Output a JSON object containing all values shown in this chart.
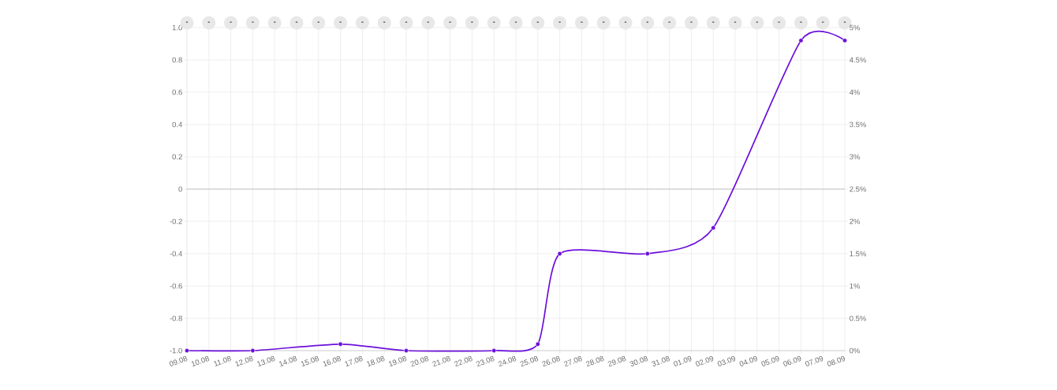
{
  "chart_data": {
    "type": "line",
    "categories": [
      "09.08",
      "10.08",
      "11.08",
      "12.08",
      "13.08",
      "14.08",
      "15.08",
      "16.08",
      "17.08",
      "18.08",
      "19.08",
      "20.08",
      "21.08",
      "22.08",
      "23.08",
      "24.08",
      "25.08",
      "26.08",
      "27.08",
      "28.08",
      "29.08",
      "30.08",
      "31.08",
      "01.09",
      "02.09",
      "03.09",
      "04.09",
      "05.09",
      "06.09",
      "07.09",
      "08.09"
    ],
    "series": [
      {
        "color": "#6c0fdb",
        "axis": "y2",
        "x": [
          "09.08",
          "12.08",
          "16.08",
          "19.08",
          "23.08",
          "25.08",
          "26.08",
          "30.08",
          "02.09",
          "06.09",
          "08.09"
        ],
        "values": [
          0,
          0,
          0.1,
          0,
          0,
          0.1,
          1.5,
          1.5,
          1.9,
          4.8,
          4.8
        ]
      }
    ],
    "ylim": [
      -1,
      1
    ],
    "yticks": [
      {
        "value": -1,
        "label": "-1.0"
      },
      -0.8,
      -0.6,
      -0.4,
      -0.2,
      0,
      0.2,
      0.4,
      0.6,
      0.8,
      {
        "value": 1,
        "label": "1.0"
      }
    ],
    "y2lim": [
      0,
      5
    ],
    "y2ticks": [
      {
        "value": 0,
        "label": "0%"
      },
      {
        "value": 0.5,
        "label": "0.5%"
      },
      {
        "value": 1,
        "label": "1%"
      },
      {
        "value": 1.5,
        "label": "1.5%"
      },
      {
        "value": 2,
        "label": "2%"
      },
      {
        "value": 2.5,
        "label": "2.5%"
      },
      {
        "value": 3,
        "label": "3%"
      },
      {
        "value": 3.5,
        "label": "3.5%"
      },
      {
        "value": 4,
        "label": "4%"
      },
      {
        "value": 4.5,
        "label": "4.5%"
      },
      {
        "value": 5,
        "label": "5%"
      }
    ],
    "ref_lines": [
      {
        "axis": "y",
        "value": 0,
        "color": "#c4c4c4"
      }
    ],
    "annotations": [
      {
        "text": "-",
        "x": "09.08"
      },
      {
        "text": "-",
        "x": "10.08"
      },
      {
        "text": "-",
        "x": "11.08"
      },
      {
        "text": "-",
        "x": "12.08"
      },
      {
        "text": "-",
        "x": "13.08"
      },
      {
        "text": "-",
        "x": "14.08"
      },
      {
        "text": "-",
        "x": "15.08"
      },
      {
        "text": "-",
        "x": "16.08"
      },
      {
        "text": "-",
        "x": "17.08"
      },
      {
        "text": "-",
        "x": "18.08"
      },
      {
        "text": "-",
        "x": "19.08"
      },
      {
        "text": "-",
        "x": "20.08"
      },
      {
        "text": "-",
        "x": "21.08"
      },
      {
        "text": "-",
        "x": "22.08"
      },
      {
        "text": "-",
        "x": "23.08"
      },
      {
        "text": "-",
        "x": "24.08"
      },
      {
        "text": "-",
        "x": "25.08"
      },
      {
        "text": "-",
        "x": "26.08"
      },
      {
        "text": "-",
        "x": "27.08"
      },
      {
        "text": "-",
        "x": "28.08"
      },
      {
        "text": "-",
        "x": "29.08"
      },
      {
        "text": "-",
        "x": "30.08"
      },
      {
        "text": "-",
        "x": "31.08"
      },
      {
        "text": "-",
        "x": "01.09"
      },
      {
        "text": "-",
        "x": "02.09"
      },
      {
        "text": "-",
        "x": "03.09"
      },
      {
        "text": "-",
        "x": "04.09"
      },
      {
        "text": "-",
        "x": "05.09"
      },
      {
        "text": "-",
        "x": "06.09"
      },
      {
        "text": "-",
        "x": "07.09"
      },
      {
        "text": "-",
        "x": "08.09"
      }
    ],
    "grid": true,
    "marker": "circle",
    "line_style": "solid"
  }
}
